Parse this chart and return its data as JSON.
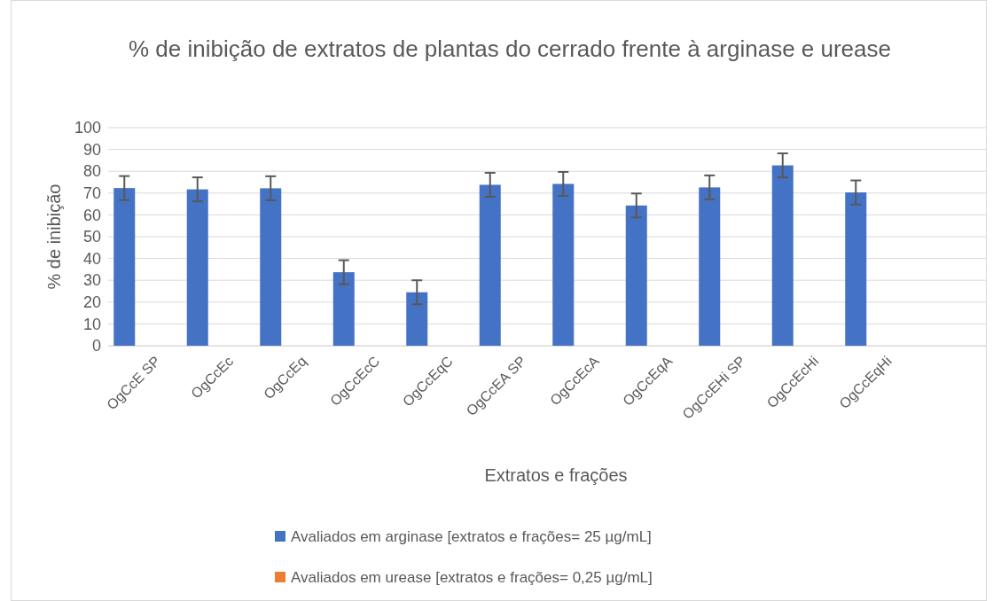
{
  "chart_data": {
    "type": "bar",
    "title": "% de inibição de extratos de plantas do cerrado frente à arginase e urease",
    "xlabel": "Extratos e frações",
    "ylabel": "% de inibição",
    "categories": [
      "OgCcE SP",
      "OgCcEc",
      "OgCcEq",
      "OgCcEcC",
      "OgCcEqC",
      "OgCcEA SP",
      "OgCcEcA",
      "OgCcEqA",
      "OgCcEHi SP",
      "OgCcEcHi",
      "OgCcEqHi",
      null
    ],
    "series": [
      {
        "name": "Avaliados em arginase [extratos e frações= 25 µg/mL]",
        "color": "#4472c4",
        "values": [
          72.3,
          71.7,
          72.2,
          33.7,
          24.5,
          73.8,
          74.2,
          64.3,
          72.6,
          82.7,
          70.3,
          null
        ],
        "errors": [
          5.5,
          5.5,
          5.5,
          5.5,
          5.5,
          5.5,
          5.5,
          5.5,
          5.5,
          5.5,
          5.5,
          null
        ]
      },
      {
        "name": "Avaliados em urease [extratos e frações= 0,25 µg/mL]",
        "color": "#ed7d31",
        "values": [
          0,
          0,
          0,
          0,
          0,
          0,
          0,
          0,
          0,
          0,
          0,
          null
        ]
      }
    ],
    "ylim": [
      0,
      100
    ],
    "yticks": [
      0,
      10,
      20,
      30,
      40,
      50,
      60,
      70,
      80,
      90,
      100
    ],
    "grid": "y",
    "legend": "bottom"
  }
}
